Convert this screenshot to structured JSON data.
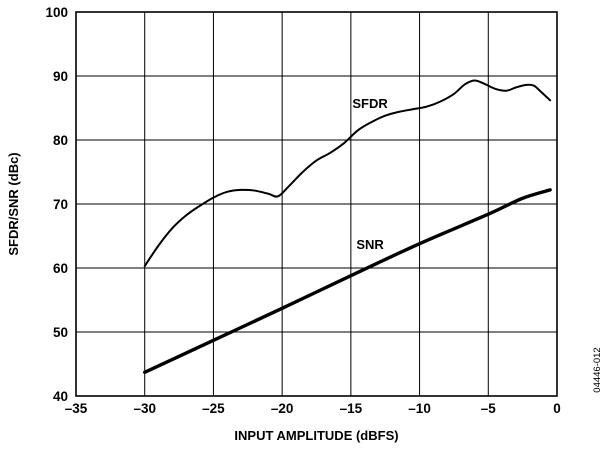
{
  "figure_id": "04446-012",
  "chart_data": {
    "type": "line",
    "title": "",
    "xlabel": "INPUT AMPLITUDE (dBFS)",
    "ylabel": "SFDR/SNR (dBc)",
    "xlim": [
      -35,
      0
    ],
    "ylim": [
      40,
      100
    ],
    "x_ticks": [
      -35,
      -30,
      -25,
      -20,
      -15,
      -10,
      -5,
      0
    ],
    "x_tick_labels": [
      "–35",
      "–30",
      "–25",
      "–20",
      "–15",
      "–10",
      "–5",
      "0"
    ],
    "y_ticks": [
      40,
      50,
      60,
      70,
      80,
      90,
      100
    ],
    "y_tick_labels": [
      "40",
      "50",
      "60",
      "70",
      "80",
      "90",
      "100"
    ],
    "grid": true,
    "legend": "none",
    "series": [
      {
        "name": "SFDR",
        "x": [
          -30,
          -29,
          -28,
          -27,
          -26,
          -25,
          -24,
          -23,
          -22,
          -21,
          -20.3,
          -19.5,
          -18.5,
          -17.5,
          -16.5,
          -15.5,
          -14.5,
          -13.5,
          -12.5,
          -11.5,
          -10.5,
          -9.5,
          -8.5,
          -7.5,
          -6.7,
          -6.0,
          -5.3,
          -4.5,
          -3.7,
          -3.0,
          -2.3,
          -1.7,
          -1.2,
          -0.5
        ],
        "values": [
          60.3,
          63.5,
          66.2,
          68.2,
          69.7,
          71.0,
          71.9,
          72.2,
          72.1,
          71.6,
          71.2,
          72.8,
          75.0,
          76.8,
          78.0,
          79.5,
          81.5,
          82.8,
          83.8,
          84.4,
          84.8,
          85.2,
          86.0,
          87.2,
          88.7,
          89.3,
          88.8,
          88.0,
          87.7,
          88.2,
          88.6,
          88.5,
          87.6,
          86.2
        ]
      },
      {
        "name": "SNR",
        "x": [
          -30,
          -25,
          -20,
          -15,
          -10,
          -5,
          -2.5,
          -0.5
        ],
        "values": [
          43.7,
          48.7,
          53.7,
          58.8,
          63.8,
          68.4,
          70.9,
          72.2
        ]
      }
    ],
    "annotations": [
      {
        "text": "SFDR",
        "x": -13.6,
        "y": 85
      },
      {
        "text": "SNR",
        "x": -13.6,
        "y": 63
      }
    ]
  }
}
